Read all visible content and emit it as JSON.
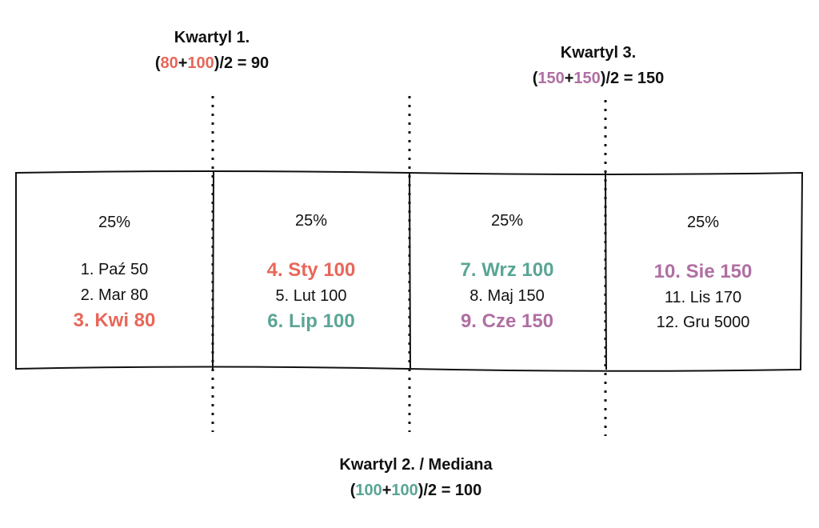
{
  "quartiles": [
    {
      "title": "Kwartyl 1.",
      "formula": [
        "(",
        "80",
        "+",
        "100",
        ")/2 = 90"
      ]
    },
    {
      "title": "Kwartyl 2. / Mediana",
      "formula": [
        "(",
        "100",
        "+",
        "100",
        ")/2 = 100"
      ]
    },
    {
      "title": "Kwartyl 3.",
      "formula": [
        "(",
        "150",
        "+",
        "150",
        ")/2 = 150"
      ]
    }
  ],
  "columns": [
    {
      "share": "25%",
      "items": [
        "1. Paź 50",
        "2. Mar 80",
        "3. Kwi 80"
      ]
    },
    {
      "share": "25%",
      "items": [
        "4. Sty 100",
        "5. Lut 100",
        "6. Lip 100"
      ]
    },
    {
      "share": "25%",
      "items": [
        "7. Wrz 100",
        "8. Maj 150",
        "9. Cze 150"
      ]
    },
    {
      "share": "25%",
      "items": [
        "10. Sie 150",
        "11. Lis 170",
        "12. Gru 5000"
      ]
    }
  ]
}
